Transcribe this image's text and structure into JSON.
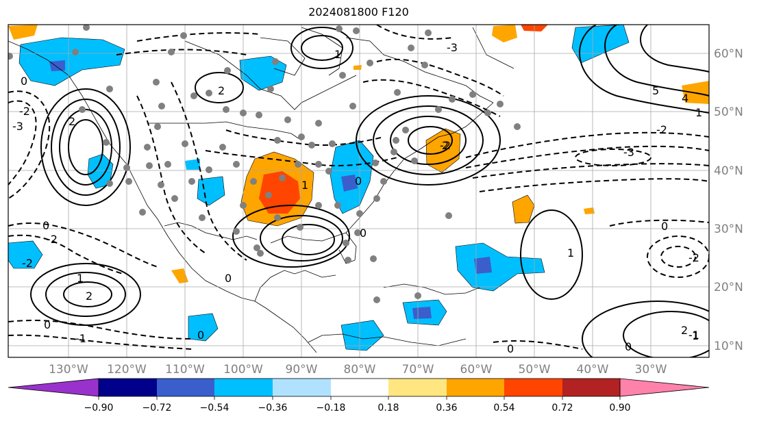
{
  "title": "2024081800 F120",
  "lon_labels": [
    "130°W",
    "120°W",
    "110°W",
    "100°W",
    "90°W",
    "80°W",
    "70°W",
    "60°W",
    "50°W",
    "40°W",
    "30°W"
  ],
  "lat_labels": [
    "60°N",
    "50°N",
    "40°N",
    "30°N",
    "20°N",
    "10°N"
  ],
  "colorbar": {
    "colors": [
      "#9932cc",
      "#00008b",
      "#3a5fcd",
      "#00bfff",
      "#b0e2ff",
      "#ffffff",
      "#ffe680",
      "#ffa500",
      "#ff4500",
      "#b22222",
      "#ff82ab"
    ],
    "tick_labels": [
      "−0.90",
      "−0.72",
      "−0.54",
      "−0.36",
      "−0.18",
      "0.18",
      "0.36",
      "0.54",
      "0.72",
      "0.90"
    ]
  },
  "contour_labels": {
    "positive": [
      "1",
      "5",
      "4",
      "1",
      "2",
      "2",
      "1",
      "2",
      "2",
      "1",
      "1",
      "0",
      "1",
      "2"
    ],
    "negative": [
      "-2",
      "-3",
      "-2",
      "-3",
      "-2",
      "-2",
      "-2",
      "-1",
      "-3",
      "-2",
      "-1"
    ],
    "zero": [
      "0",
      "0",
      "0",
      "0",
      "0",
      "0",
      "0",
      "0",
      "0",
      "0"
    ]
  },
  "colors": {
    "frame": "#000000",
    "grid": "#a9a9a9",
    "axis_text": "#808080",
    "station_dot": "#808080"
  }
}
